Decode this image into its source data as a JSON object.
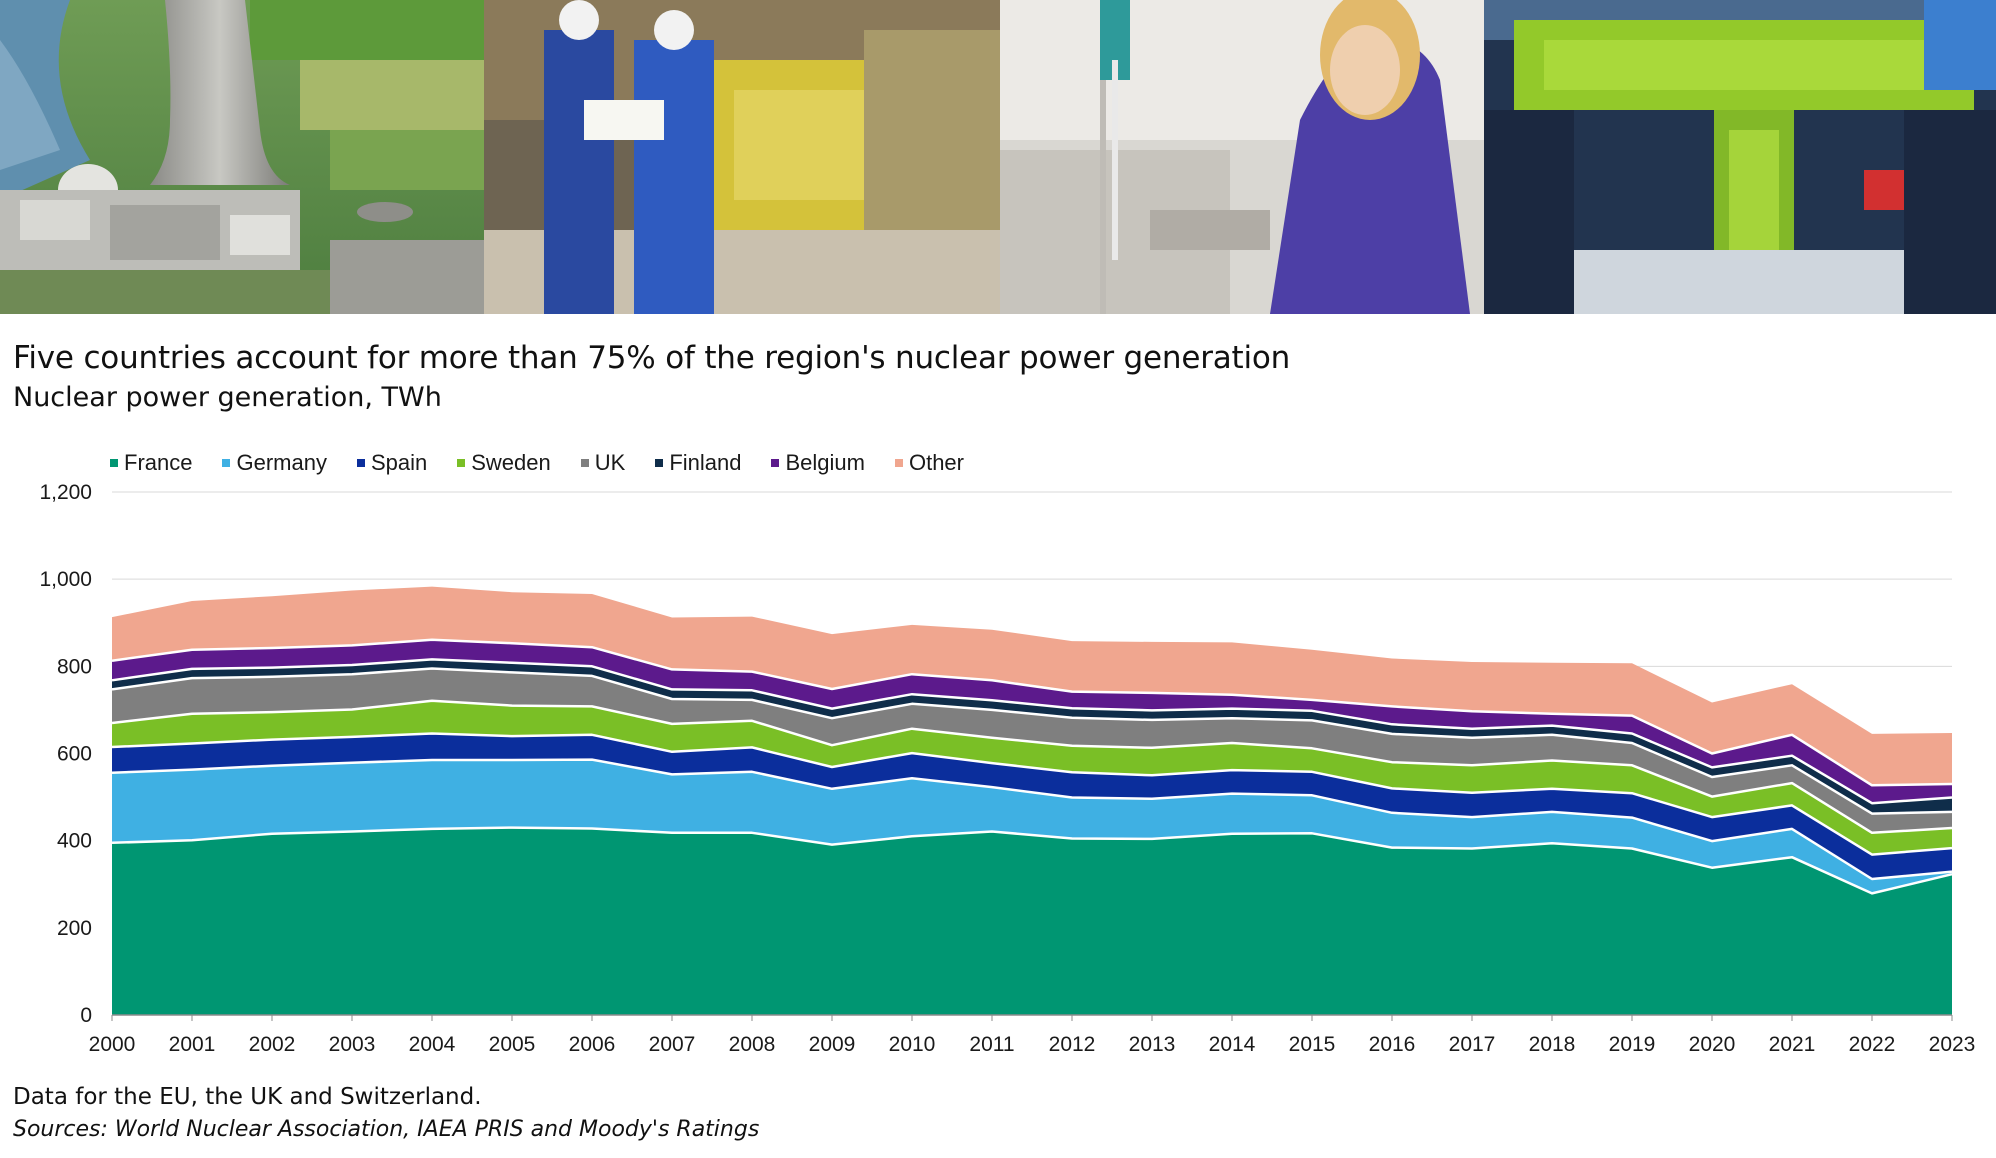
{
  "header": {
    "title": "Five countries account for more than 75% of the region's nuclear power generation",
    "subtitle": "Nuclear power generation, TWh"
  },
  "footer": {
    "note": "Data for the EU, the UK and Switzerland.",
    "source": "Sources: World Nuclear Association, IAEA PRIS and Moody's Ratings"
  },
  "photos": [
    {
      "name": "cooling-tower-aerial-photo",
      "colors": [
        "#3f7a3a",
        "#8fb3c9",
        "#c9c9c4"
      ]
    },
    {
      "name": "engineers-in-turbine-hall-photo",
      "colors": [
        "#2d4fa6",
        "#d6c83a",
        "#7a7060"
      ]
    },
    {
      "name": "lab-technician-photo",
      "colors": [
        "#e8e6e2",
        "#4b3fa0",
        "#d9b26a"
      ]
    },
    {
      "name": "reactor-hall-crane-photo",
      "colors": [
        "#9ccf2a",
        "#1c2f4a",
        "#4d8fd0"
      ]
    }
  ],
  "chart_data": {
    "type": "area",
    "stacked": true,
    "title": "Five countries account for more than 75% of the region's nuclear power generation",
    "subtitle": "Nuclear power generation, TWh",
    "xlabel": "",
    "ylabel": "",
    "ylim": [
      0,
      1200
    ],
    "yticks": [
      0,
      200,
      400,
      600,
      800,
      1000,
      1200
    ],
    "ytick_labels": [
      "0",
      "200",
      "400",
      "600",
      "800",
      "1,000",
      "1,200"
    ],
    "grid": "horizontal",
    "legend_position": "top-left",
    "x": [
      2000,
      2001,
      2002,
      2003,
      2004,
      2005,
      2006,
      2007,
      2008,
      2009,
      2010,
      2011,
      2012,
      2013,
      2014,
      2015,
      2016,
      2017,
      2018,
      2019,
      2020,
      2021,
      2022,
      2023
    ],
    "x_labels": [
      "2000",
      "2001",
      "2002",
      "2003",
      "2004",
      "2005",
      "2006",
      "2007",
      "2008",
      "2009",
      "2010",
      "2011",
      "2012",
      "2013",
      "2014",
      "2015",
      "2016",
      "2017",
      "2018",
      "2019",
      "2020",
      "2021",
      "2022",
      "2023"
    ],
    "series": [
      {
        "name": "France",
        "color": "#009672",
        "values": [
          395,
          401,
          416,
          421,
          427,
          430,
          428,
          418,
          418,
          391,
          410,
          421,
          405,
          404,
          416,
          417,
          384,
          382,
          394,
          382,
          338,
          362,
          279,
          323
        ]
      },
      {
        "name": "Germany",
        "color": "#3fb0e3",
        "values": [
          161,
          162,
          156,
          158,
          158,
          155,
          158,
          134,
          140,
          128,
          133,
          102,
          94,
          92,
          92,
          87,
          80,
          72,
          72,
          71,
          61,
          65,
          33,
          6
        ]
      },
      {
        "name": "Spain",
        "color": "#0b2e9c",
        "values": [
          59,
          60,
          60,
          59,
          61,
          55,
          57,
          52,
          56,
          50,
          58,
          55,
          58,
          54,
          54,
          54,
          56,
          56,
          53,
          56,
          55,
          54,
          56,
          54
        ]
      },
      {
        "name": "Sweden",
        "color": "#7abf26",
        "values": [
          55,
          68,
          63,
          63,
          75,
          70,
          65,
          64,
          61,
          50,
          56,
          58,
          61,
          63,
          62,
          54,
          60,
          63,
          65,
          64,
          47,
          51,
          50,
          46
        ]
      },
      {
        "name": "UK",
        "color": "#7f7f7f",
        "values": [
          77,
          82,
          81,
          81,
          74,
          76,
          70,
          57,
          48,
          62,
          57,
          64,
          64,
          64,
          57,
          64,
          65,
          63,
          59,
          51,
          45,
          41,
          44,
          37
        ]
      },
      {
        "name": "Finland",
        "color": "#0f2d4a",
        "values": [
          21,
          21,
          21,
          21,
          21,
          22,
          22,
          22,
          22,
          22,
          22,
          22,
          22,
          22,
          22,
          22,
          22,
          21,
          21,
          22,
          22,
          22,
          24,
          33
        ]
      },
      {
        "name": "Belgium",
        "color": "#5c1a8c",
        "values": [
          45,
          44,
          45,
          45,
          45,
          45,
          44,
          46,
          43,
          45,
          46,
          46,
          38,
          40,
          32,
          25,
          41,
          40,
          27,
          41,
          32,
          48,
          41,
          31
        ]
      },
      {
        "name": "Other",
        "color": "#f0a68f",
        "values": [
          100,
          112,
          119,
          126,
          122,
          117,
          122,
          119,
          126,
          126,
          113,
          116,
          116,
          117,
          120,
          115,
          110,
          113,
          117,
          120,
          117,
          116,
          118,
          117
        ]
      }
    ]
  }
}
